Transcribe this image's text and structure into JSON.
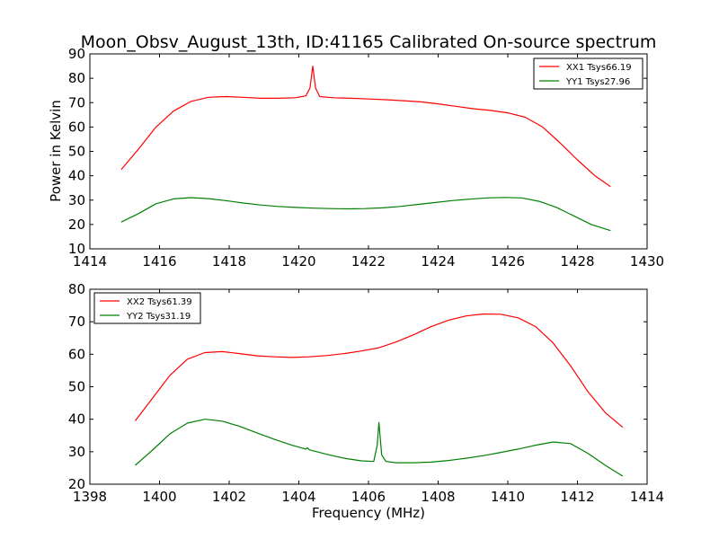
{
  "figure_title": "Moon_Obsv_August_13th, ID:41165 Calibrated On-source spectrum",
  "chart_data": [
    {
      "type": "line",
      "xlabel": "",
      "ylabel": "Power in Kelvin",
      "xlim": [
        1414,
        1430
      ],
      "ylim": [
        10,
        90
      ],
      "xticks": [
        "1414",
        "1416",
        "1418",
        "1420",
        "1422",
        "1424",
        "1426",
        "1428",
        "1430"
      ],
      "yticks": [
        "10",
        "20",
        "30",
        "40",
        "50",
        "60",
        "70",
        "80",
        "90"
      ],
      "grid": false,
      "legend_position": "top-right",
      "series": [
        {
          "name": "XX1 Tsys66.19",
          "color": "#ff0000",
          "x": [
            1414.9,
            1415.4,
            1415.9,
            1416.4,
            1416.9,
            1417.4,
            1417.9,
            1418.4,
            1418.9,
            1419.4,
            1419.9,
            1420.2,
            1420.32,
            1420.4,
            1420.48,
            1420.6,
            1421.0,
            1421.5,
            1422.0,
            1422.5,
            1423.0,
            1423.5,
            1424.0,
            1424.5,
            1425.0,
            1425.5,
            1426.0,
            1426.5,
            1427.0,
            1427.5,
            1428.0,
            1428.5,
            1428.95
          ],
          "y": [
            42.5,
            51,
            60,
            66.5,
            70.5,
            72.2,
            72.5,
            72.2,
            71.8,
            71.8,
            72.0,
            72.8,
            76,
            85,
            76,
            72.5,
            72.0,
            71.8,
            71.5,
            71.2,
            70.8,
            70.3,
            69.5,
            68.5,
            67.5,
            66.8,
            65.8,
            64.0,
            60.0,
            53.5,
            46.5,
            40.0,
            35.5
          ]
        },
        {
          "name": "YY1 Tsys27.96",
          "color": "#008000",
          "x": [
            1414.9,
            1415.4,
            1415.9,
            1416.4,
            1416.9,
            1417.4,
            1417.9,
            1418.4,
            1418.9,
            1419.4,
            1419.9,
            1420.4,
            1420.9,
            1421.4,
            1421.9,
            1422.4,
            1422.9,
            1423.4,
            1423.9,
            1424.4,
            1424.9,
            1425.4,
            1425.9,
            1426.4,
            1426.9,
            1427.4,
            1427.9,
            1428.4,
            1428.95
          ],
          "y": [
            21,
            24.5,
            28.5,
            30.5,
            31.0,
            30.6,
            29.8,
            28.8,
            28.0,
            27.4,
            27.0,
            26.7,
            26.5,
            26.4,
            26.5,
            26.8,
            27.4,
            28.2,
            29.0,
            29.8,
            30.4,
            30.9,
            31.1,
            30.9,
            29.5,
            27.0,
            23.5,
            20.0,
            17.5
          ]
        }
      ]
    },
    {
      "type": "line",
      "xlabel": "Frequency (MHz)",
      "ylabel": "",
      "xlim": [
        1398,
        1414
      ],
      "ylim": [
        20,
        80
      ],
      "xticks": [
        "1398",
        "1400",
        "1402",
        "1404",
        "1406",
        "1408",
        "1410",
        "1412",
        "1414"
      ],
      "yticks": [
        "20",
        "30",
        "40",
        "50",
        "60",
        "70",
        "80"
      ],
      "grid": false,
      "legend_position": "top-left",
      "series": [
        {
          "name": "XX2 Tsys61.39",
          "color": "#ff0000",
          "x": [
            1399.3,
            1399.8,
            1400.3,
            1400.8,
            1401.3,
            1401.8,
            1402.3,
            1402.8,
            1403.3,
            1403.8,
            1404.3,
            1404.8,
            1405.3,
            1405.8,
            1406.3,
            1406.8,
            1407.3,
            1407.8,
            1408.3,
            1408.8,
            1409.3,
            1409.8,
            1410.3,
            1410.8,
            1411.3,
            1411.8,
            1412.3,
            1412.8,
            1413.3
          ],
          "y": [
            39.5,
            46.5,
            53.5,
            58.5,
            60.5,
            60.8,
            60.2,
            59.5,
            59.2,
            59.0,
            59.2,
            59.6,
            60.2,
            61.0,
            62.0,
            63.8,
            66.0,
            68.5,
            70.5,
            71.8,
            72.4,
            72.3,
            71.2,
            68.5,
            63.5,
            56.5,
            48.5,
            42.0,
            37.5
          ]
        },
        {
          "name": "YY2 Tsys31.19",
          "color": "#008000",
          "x": [
            1399.3,
            1399.8,
            1400.3,
            1400.8,
            1401.3,
            1401.8,
            1402.3,
            1402.8,
            1403.3,
            1403.8,
            1404.2,
            1404.25,
            1404.3,
            1404.8,
            1405.3,
            1405.8,
            1406.15,
            1406.25,
            1406.3,
            1406.38,
            1406.5,
            1406.8,
            1407.3,
            1407.8,
            1408.3,
            1408.8,
            1409.3,
            1409.8,
            1410.3,
            1410.8,
            1411.3,
            1411.8,
            1412.3,
            1412.8,
            1413.3
          ],
          "y": [
            25.8,
            30.5,
            35.5,
            38.8,
            40.0,
            39.4,
            37.8,
            35.8,
            33.8,
            32.0,
            30.8,
            31.2,
            30.6,
            29.2,
            28.0,
            27.2,
            27.0,
            32,
            39,
            29,
            27.0,
            26.6,
            26.6,
            26.8,
            27.3,
            28.0,
            28.8,
            29.8,
            30.8,
            32.0,
            33.0,
            32.5,
            29.5,
            25.8,
            22.5
          ]
        }
      ]
    }
  ]
}
